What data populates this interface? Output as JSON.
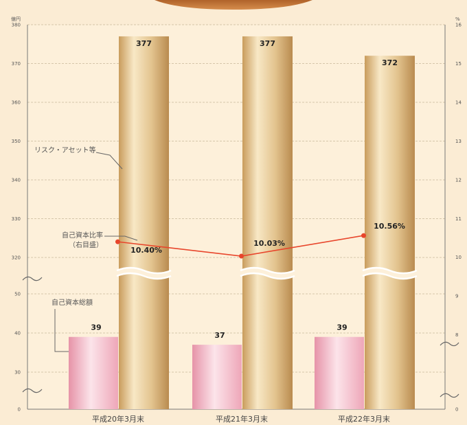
{
  "chart_data": {
    "type": "bar",
    "left_axis_unit": "億円",
    "right_axis_unit": "%",
    "categories": [
      "平成20年3月末",
      "平成21年3月末",
      "平成22年3月末"
    ],
    "series": [
      {
        "name": "リスク・アセット等",
        "type": "bar",
        "axis": "left",
        "values": [
          377,
          377,
          372
        ]
      },
      {
        "name": "自己資本総額",
        "type": "bar",
        "axis": "left",
        "values": [
          39,
          37,
          39
        ]
      },
      {
        "name": "自己資本比率（右目盛）",
        "type": "line",
        "axis": "right",
        "values": [
          10.4,
          10.03,
          10.56
        ]
      }
    ],
    "value_labels": {
      "risk_assets": [
        "377",
        "377",
        "372"
      ],
      "capital": [
        "39",
        "37",
        "39"
      ],
      "ratio": [
        "10.40%",
        "10.03%",
        "10.56%"
      ]
    },
    "left_axis": {
      "broken": true,
      "lower_ticks": [
        "0",
        "30",
        "40",
        "50"
      ],
      "upper_ticks": [
        "320",
        "330",
        "340",
        "350",
        "360",
        "370",
        "380"
      ],
      "lower_range": [
        25,
        55
      ],
      "upper_range": [
        315,
        380
      ]
    },
    "right_axis": {
      "broken": true,
      "ticks": [
        "0",
        "8",
        "9",
        "10",
        "11",
        "12",
        "13",
        "14",
        "15",
        "16"
      ],
      "range": [
        7,
        16
      ]
    },
    "grid": true,
    "colors": {
      "background": "#fbecd4",
      "risk_bar": "#e3c48f",
      "capital_bar": "#f3b7c4",
      "ratio_line": "#e8452b",
      "grid": "#c8b89a"
    }
  }
}
